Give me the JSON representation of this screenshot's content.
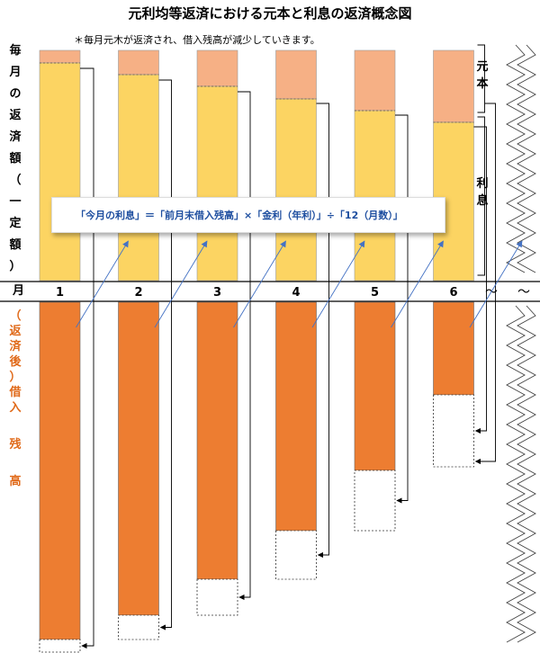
{
  "title": "元利均等返済における元本と利息の返済概念図",
  "note": "＊毎月元木が返済され、借入残高が減少していきます。",
  "left_label_top": "毎月の返済額（一定額）",
  "left_label_bottom": "（返済後）借入残高",
  "right_label_principal": "元本",
  "right_label_interest": "利息",
  "axis_title": "月",
  "formula": "「今月の利息」＝「前月末借入残高」×「金利（年利）」÷「12（月数）」",
  "months": [
    "1",
    "2",
    "3",
    "4",
    "5",
    "6"
  ],
  "continuation": [
    "～",
    "～"
  ],
  "colors": {
    "interest": "#fcd462",
    "principal": "#f6b085",
    "balance": "#ed7d31",
    "formula_text": "#1f4fa0",
    "arrow": "#4472c4"
  },
  "chart_data": {
    "type": "bar",
    "categories": [
      "1",
      "2",
      "3",
      "4",
      "5",
      "6"
    ],
    "series": [
      {
        "name": "元本",
        "values": [
          14,
          27,
          40,
          54,
          67,
          80
        ]
      },
      {
        "name": "利息",
        "values": [
          242,
          229,
          216,
          202,
          189,
          176
        ]
      },
      {
        "name": "（返済後）借入残高",
        "values": [
          375,
          348,
          308,
          254,
          187,
          103
        ]
      }
    ]
  }
}
